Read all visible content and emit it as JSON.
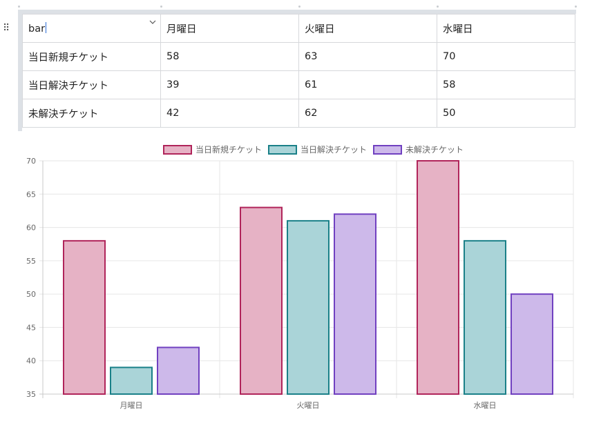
{
  "table": {
    "type_cell": "bar",
    "header": [
      "月曜日",
      "火曜日",
      "水曜日"
    ],
    "rows": [
      {
        "label": "当日新規チケット",
        "cells": [
          "58",
          "63",
          "70"
        ]
      },
      {
        "label": "当日解決チケット",
        "cells": [
          "39",
          "61",
          "58"
        ]
      },
      {
        "label": "未解決チケット",
        "cells": [
          "42",
          "62",
          "50"
        ]
      }
    ]
  },
  "chart_data": {
    "type": "bar",
    "categories": [
      "月曜日",
      "火曜日",
      "水曜日"
    ],
    "series": [
      {
        "name": "当日新規チケット",
        "values": [
          58,
          63,
          70
        ],
        "fill": "#e6b2c5",
        "stroke": "#b0245a"
      },
      {
        "name": "当日解決チケット",
        "values": [
          39,
          61,
          58
        ],
        "fill": "#aad4d8",
        "stroke": "#1a8088"
      },
      {
        "name": "未解決チケット",
        "values": [
          42,
          62,
          50
        ],
        "fill": "#cdb9ea",
        "stroke": "#7040c0"
      }
    ],
    "ylim": [
      35,
      70
    ],
    "yticks": [
      35,
      40,
      45,
      50,
      55,
      60,
      65,
      70
    ],
    "grid": true,
    "legend": "top-center"
  }
}
